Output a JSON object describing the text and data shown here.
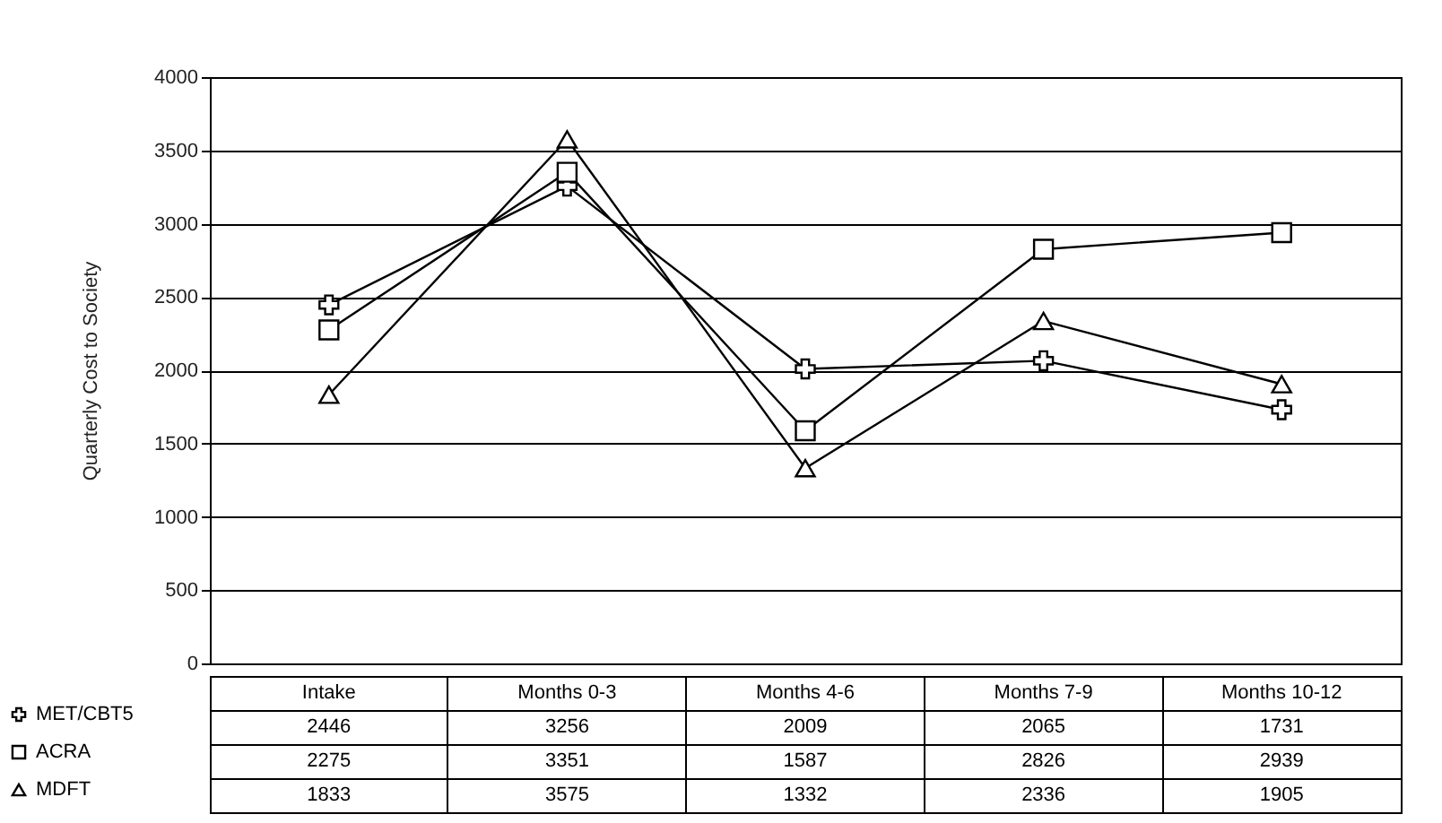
{
  "chart_data": {
    "type": "line",
    "ylabel": "Quarterly Cost to Society",
    "categories": [
      "Intake",
      "Months 0-3",
      "Months 4-6",
      "Months 7-9",
      "Months 10-12"
    ],
    "series": [
      {
        "name": "MET/CBT5",
        "color": "#000000",
        "marker": "cross",
        "values": [
          2446,
          3256,
          2009,
          2065,
          1731
        ]
      },
      {
        "name": "ACRA",
        "color": "#000000",
        "marker": "square",
        "values": [
          2275,
          3351,
          1587,
          2826,
          2939
        ]
      },
      {
        "name": "MDFT",
        "color": "#000000",
        "marker": "triangle",
        "values": [
          1833,
          3575,
          1332,
          2336,
          1905
        ]
      }
    ],
    "ylim": [
      0,
      4000
    ],
    "yticks": [
      0,
      500,
      1000,
      1500,
      2000,
      2500,
      3000,
      3500,
      4000
    ],
    "grid": "y",
    "legend": "bottom left",
    "data_labels": true,
    "line_style": "solid"
  }
}
